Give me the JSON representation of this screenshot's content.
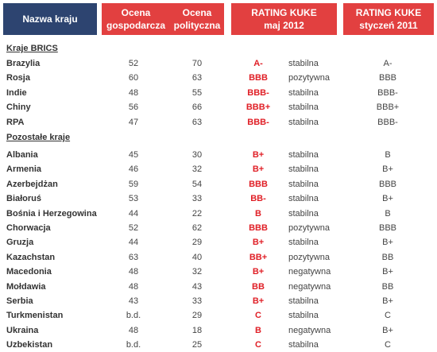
{
  "header": {
    "country": "Nazwa kraju",
    "economic": [
      "Ocena",
      "gospodarcza"
    ],
    "political": [
      "Ocena",
      "polityczna"
    ],
    "rating_current": [
      "RATING KUKE",
      "maj 2012"
    ],
    "rating_previous": [
      "RATING KUKE",
      "styczeń 2011"
    ]
  },
  "sections": [
    {
      "title": "Kraje BRICS",
      "rows": [
        {
          "country": "Brazylia",
          "eco": "52",
          "pol": "70",
          "rating": "A-",
          "outlook": "stabilna",
          "prev": "A-"
        },
        {
          "country": "Rosja",
          "eco": "60",
          "pol": "63",
          "rating": "BBB",
          "outlook": "pozytywna",
          "prev": "BBB"
        },
        {
          "country": "Indie",
          "eco": "48",
          "pol": "55",
          "rating": "BBB-",
          "outlook": "stabilna",
          "prev": "BBB-"
        },
        {
          "country": "Chiny",
          "eco": "56",
          "pol": "66",
          "rating": "BBB+",
          "outlook": "stabilna",
          "prev": "BBB+"
        },
        {
          "country": "RPA",
          "eco": "47",
          "pol": "63",
          "rating": "BBB-",
          "outlook": "stabilna",
          "prev": "BBB-"
        }
      ]
    },
    {
      "title": "Pozostałe kraje",
      "rows": [
        {
          "country": "Albania",
          "eco": "45",
          "pol": "30",
          "rating": "B+",
          "outlook": "stabilna",
          "prev": "B"
        },
        {
          "country": "Armenia",
          "eco": "46",
          "pol": "32",
          "rating": "B+",
          "outlook": "stabilna",
          "prev": "B+"
        },
        {
          "country": "Azerbejdżan",
          "eco": "59",
          "pol": "54",
          "rating": "BBB",
          "outlook": "stabilna",
          "prev": "BBB"
        },
        {
          "country": "Białoruś",
          "eco": "53",
          "pol": "33",
          "rating": "BB-",
          "outlook": "stabilna",
          "prev": "B+"
        },
        {
          "country": "Bośnia i Herzegowina",
          "eco": "44",
          "pol": "22",
          "rating": "B",
          "outlook": "stabilna",
          "prev": "B"
        },
        {
          "country": "Chorwacja",
          "eco": "52",
          "pol": "62",
          "rating": "BBB",
          "outlook": "pozytywna",
          "prev": "BBB"
        },
        {
          "country": "Gruzja",
          "eco": "44",
          "pol": "29",
          "rating": "B+",
          "outlook": "stabilna",
          "prev": "B+"
        },
        {
          "country": "Kazachstan",
          "eco": "63",
          "pol": "40",
          "rating": "BB+",
          "outlook": "pozytywna",
          "prev": "BB"
        },
        {
          "country": "Macedonia",
          "eco": "48",
          "pol": "32",
          "rating": "B+",
          "outlook": "negatywna",
          "prev": "B+"
        },
        {
          "country": "Mołdawia",
          "eco": "48",
          "pol": "43",
          "rating": "BB",
          "outlook": "negatywna",
          "prev": "BB"
        },
        {
          "country": "Serbia",
          "eco": "43",
          "pol": "33",
          "rating": "B+",
          "outlook": "stabilna",
          "prev": "B+"
        },
        {
          "country": "Turkmenistan",
          "eco": "b.d.",
          "pol": "29",
          "rating": "C",
          "outlook": "stabilna",
          "prev": "C"
        },
        {
          "country": "Ukraina",
          "eco": "48",
          "pol": "18",
          "rating": "B",
          "outlook": "negatywna",
          "prev": "B+"
        },
        {
          "country": "Uzbekistan",
          "eco": "b.d.",
          "pol": "25",
          "rating": "C",
          "outlook": "stabilna",
          "prev": "C"
        }
      ]
    }
  ]
}
